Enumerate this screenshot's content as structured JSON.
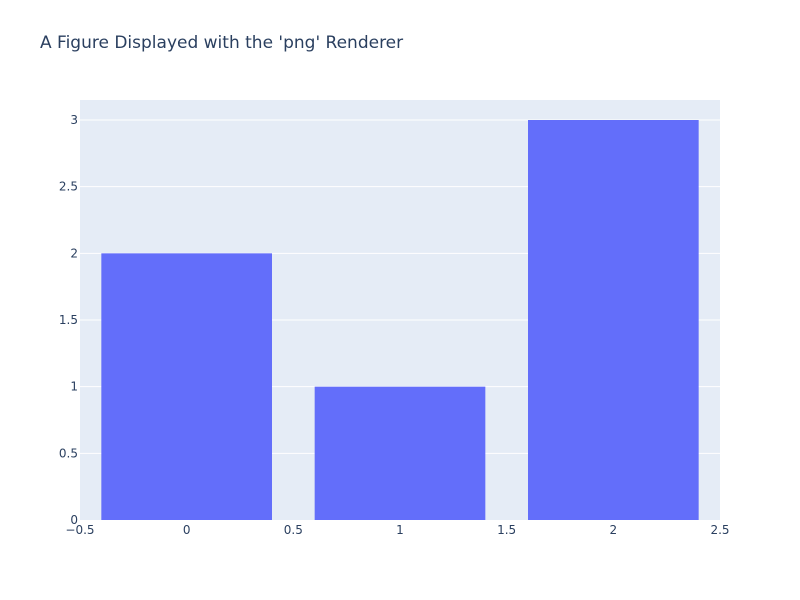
{
  "chart_data": {
    "type": "bar",
    "title": "A Figure Displayed with the 'png' Renderer",
    "x": [
      0,
      1,
      2
    ],
    "values": [
      2,
      1,
      3
    ],
    "bar_width": 0.8,
    "xlim": [
      -0.5,
      2.5
    ],
    "ylim": [
      0,
      3.15
    ],
    "xticks": [
      -0.5,
      0,
      0.5,
      1,
      1.5,
      2,
      2.5
    ],
    "xtick_labels": [
      "−0.5",
      "0",
      "0.5",
      "1",
      "1.5",
      "2",
      "2.5"
    ],
    "yticks": [
      0,
      0.5,
      1,
      1.5,
      2,
      2.5,
      3
    ],
    "ytick_labels": [
      "0",
      "0.5",
      "1",
      "1.5",
      "2",
      "2.5",
      "3"
    ],
    "grid": true,
    "legend": false,
    "colors": {
      "bar": "#636efa",
      "plot_bg": "#e5ecf6",
      "grid": "#ffffff",
      "text": "#2a3f5f"
    }
  }
}
